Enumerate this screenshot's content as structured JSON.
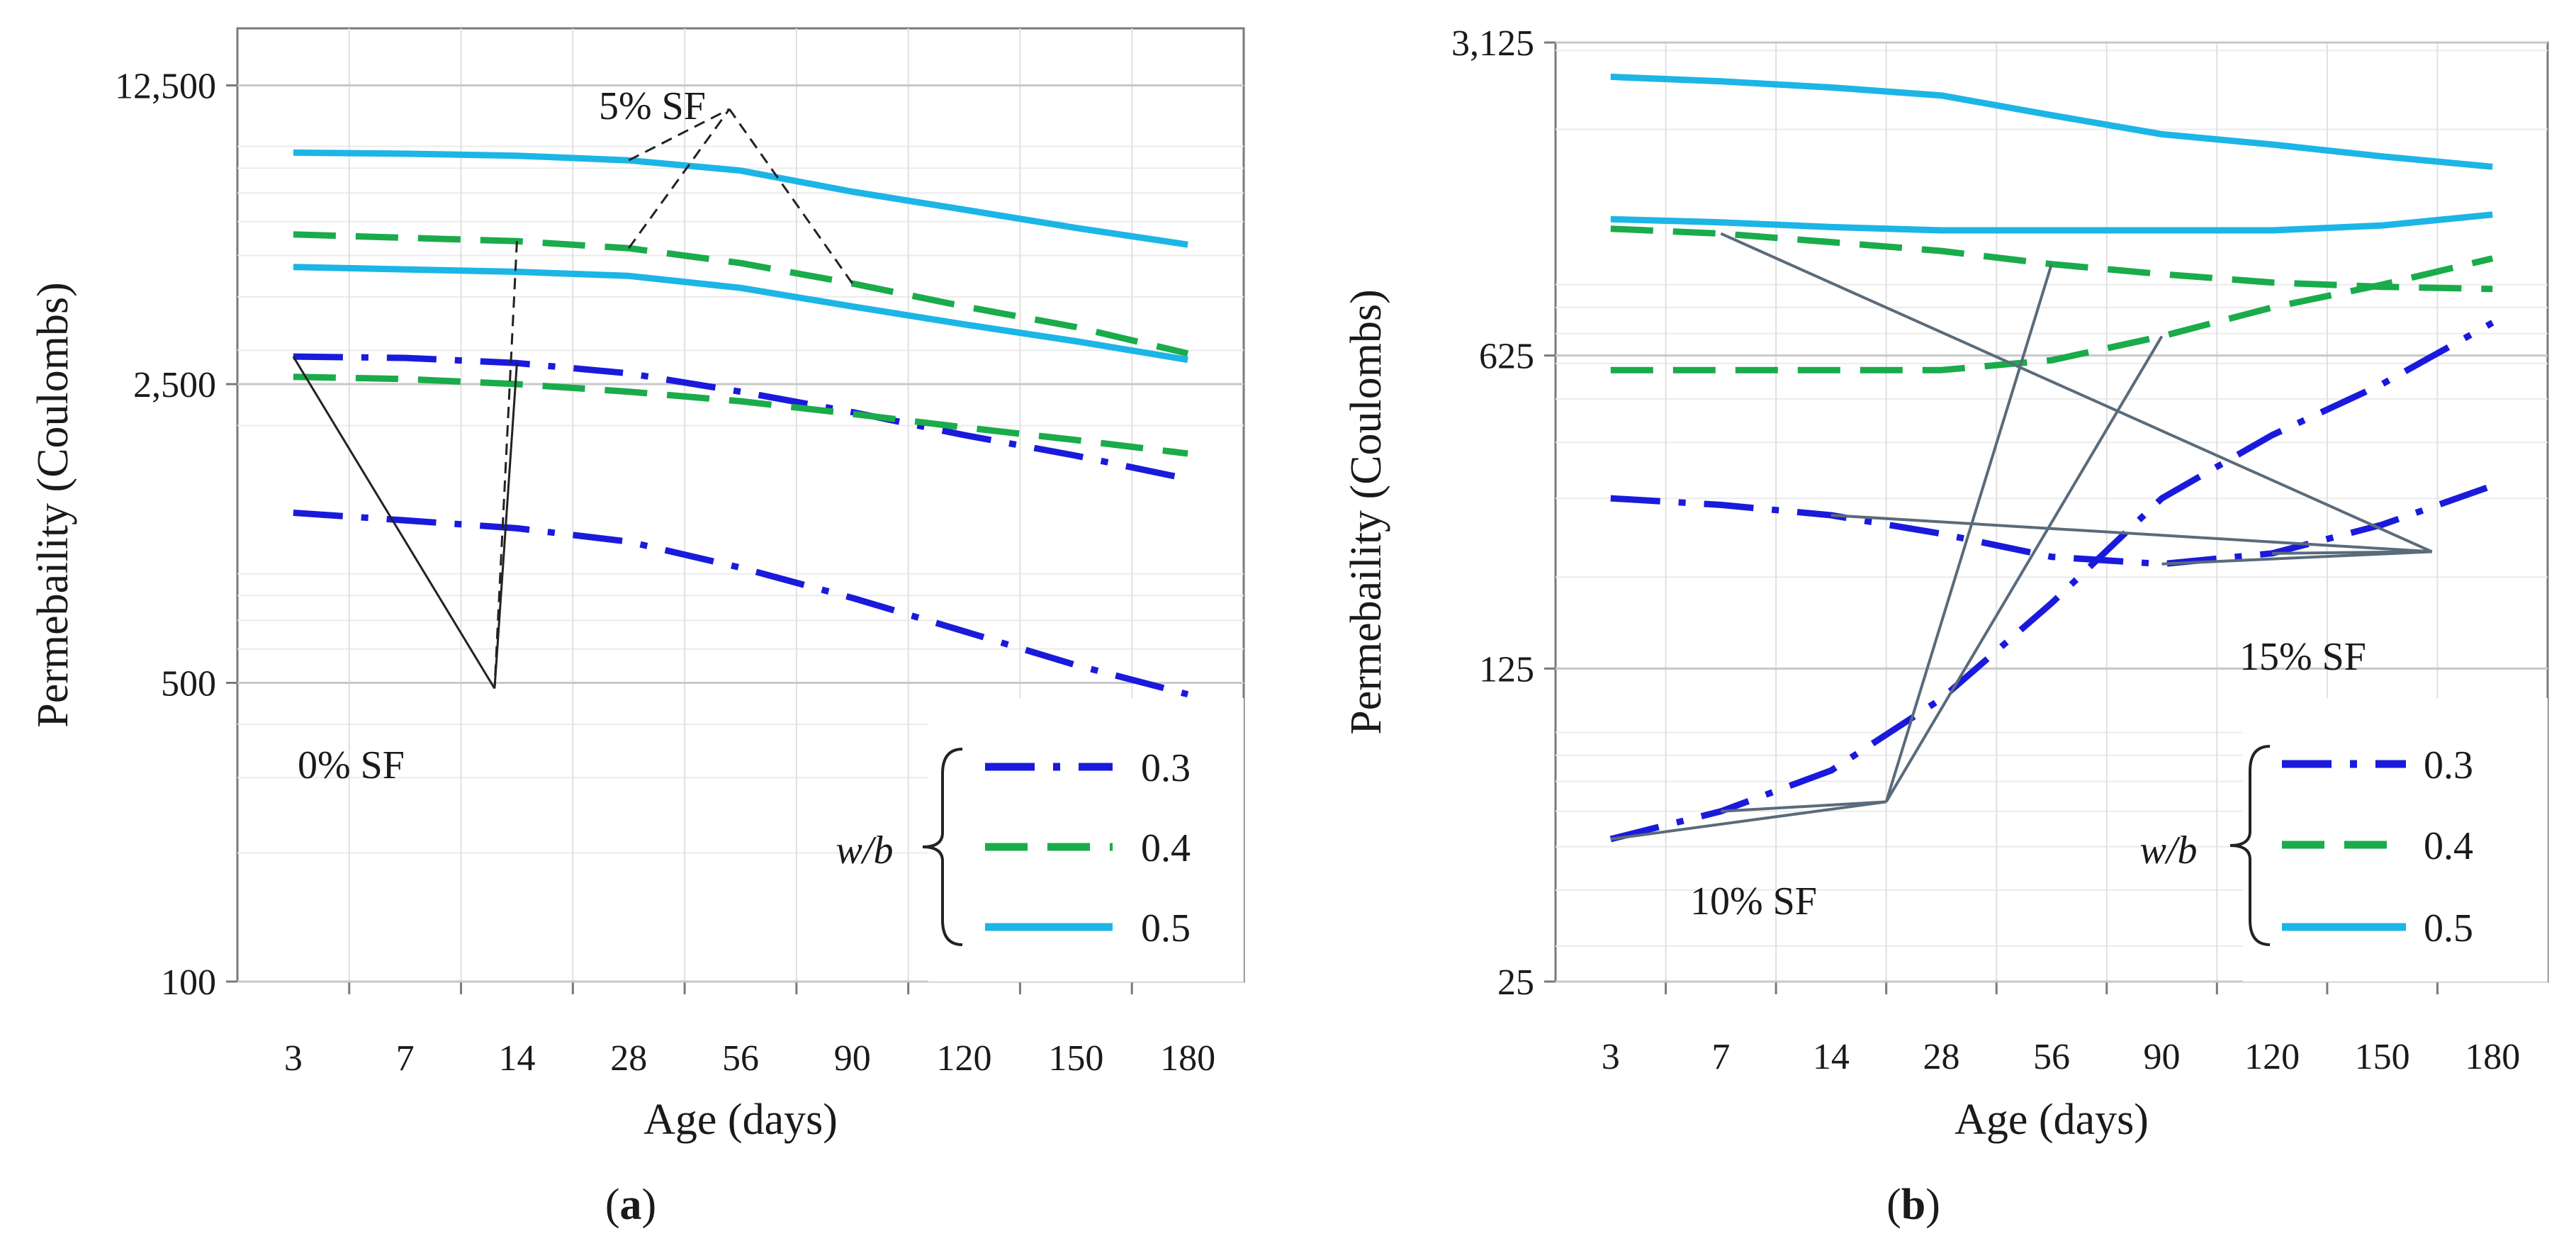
{
  "legend_title": "w/b",
  "chart_data": [
    {
      "type": "line",
      "panel_label": "(a)",
      "panel_letter": "a",
      "xlabel": "Age (days)",
      "ylabel": "Permebaility (Coulombs)",
      "x_categories": [
        "3",
        "7",
        "14",
        "28",
        "56",
        "90",
        "120",
        "150",
        "180"
      ],
      "y_scale": "log",
      "ylim": [
        100,
        17000
      ],
      "y_ticks": [
        100,
        500,
        2500,
        12500
      ],
      "y_tick_labels": [
        "100",
        "500",
        "2,500",
        "12,500"
      ],
      "grid": true,
      "legend_placement": "bottom-right",
      "series": [
        {
          "name": "0.3",
          "group": "0% SF",
          "style": "dashdot",
          "color": "#1a1adc",
          "values": [
            1250,
            1200,
            1150,
            1070,
            930,
            790,
            660,
            550,
            470
          ]
        },
        {
          "name": "0.3",
          "group": "5% SF",
          "style": "dashdot",
          "color": "#1a1adc",
          "values": [
            2900,
            2880,
            2800,
            2650,
            2400,
            2150,
            1900,
            1700,
            1500
          ]
        },
        {
          "name": "0.4",
          "group": "0% SF",
          "style": "dashed",
          "color": "#1aab4b",
          "values": [
            2600,
            2570,
            2500,
            2400,
            2280,
            2130,
            1980,
            1850,
            1720
          ]
        },
        {
          "name": "0.4",
          "group": "5% SF",
          "style": "dashed",
          "color": "#1aab4b",
          "values": [
            5600,
            5500,
            5400,
            5200,
            4800,
            4300,
            3800,
            3400,
            2950
          ]
        },
        {
          "name": "0.5",
          "group": "0% SF",
          "style": "solid",
          "color": "#1cb5e6",
          "values": [
            4700,
            4640,
            4580,
            4480,
            4200,
            3800,
            3450,
            3150,
            2850
          ]
        },
        {
          "name": "0.5",
          "group": "5% SF",
          "style": "solid",
          "color": "#1cb5e6",
          "values": [
            8700,
            8650,
            8560,
            8350,
            7900,
            7050,
            6400,
            5800,
            5300
          ]
        }
      ],
      "annotations": [
        {
          "text": "0% SF",
          "target_x": 1.8,
          "target_y": 485
        },
        {
          "text": "5% SF",
          "target_x": 3.9,
          "target_y": 11000
        }
      ]
    },
    {
      "type": "line",
      "panel_label": "(b)",
      "panel_letter": "b",
      "xlabel": "Age (days)",
      "ylabel": "Permebaility (Coulombs)",
      "x_categories": [
        "3",
        "7",
        "14",
        "28",
        "56",
        "90",
        "120",
        "150",
        "180"
      ],
      "y_scale": "log",
      "ylim": [
        25,
        3125
      ],
      "y_ticks": [
        25,
        125,
        625,
        3125
      ],
      "y_tick_labels": [
        "25",
        "125",
        "625",
        "3,125"
      ],
      "grid": true,
      "legend_placement": "bottom-right",
      "series": [
        {
          "name": "0.3",
          "group": "10% SF",
          "style": "dashdot",
          "color": "#1a1adc",
          "values": [
            52,
            60,
            74,
            107,
            175,
            300,
            415,
            540,
            740
          ]
        },
        {
          "name": "0.3",
          "group": "15% SF",
          "style": "dashdot",
          "color": "#1a1adc",
          "values": [
            300,
            290,
            275,
            250,
            222,
            214,
            226,
            262,
            320
          ]
        },
        {
          "name": "0.4",
          "group": "10% SF",
          "style": "dashed",
          "color": "#1aab4b",
          "values": [
            580,
            580,
            580,
            580,
            610,
            690,
            800,
            900,
            1030
          ]
        },
        {
          "name": "0.4",
          "group": "15% SF",
          "style": "dashed",
          "color": "#1aab4b",
          "values": [
            1200,
            1170,
            1120,
            1070,
            1000,
            950,
            910,
            890,
            880
          ]
        },
        {
          "name": "0.5",
          "group": "10% SF",
          "style": "solid",
          "color": "#1cb5e6",
          "values": [
            1260,
            1240,
            1210,
            1190,
            1190,
            1190,
            1190,
            1220,
            1290
          ]
        },
        {
          "name": "0.5",
          "group": "15% SF",
          "style": "solid",
          "color": "#1cb5e6",
          "values": [
            2620,
            2560,
            2480,
            2380,
            2150,
            1950,
            1850,
            1740,
            1650
          ]
        }
      ],
      "annotations": [
        {
          "text": "10% SF",
          "target_x": 2.5,
          "target_y": 63
        },
        {
          "text": "15% SF",
          "target_x": 7.45,
          "target_y": 228
        }
      ]
    }
  ]
}
